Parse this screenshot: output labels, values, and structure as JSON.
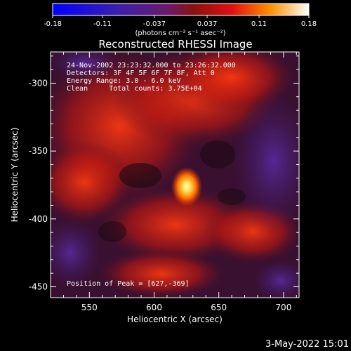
{
  "colorbar": {
    "ticks": [
      "-0.18",
      "-0.11",
      "-0.037",
      "0.037",
      "0.11",
      "0.18"
    ],
    "unit_label": "(photons cm⁻² s⁻¹ asec⁻²)",
    "range": [
      -0.18,
      0.18
    ]
  },
  "plot": {
    "title": "Reconstructed RHESSI Image",
    "info": [
      "24-Nov-2002 23:23:32.000 to 23:26:32.000",
      "Detectors: 3F 4F 5F 6F 7F 8F, Att 0",
      "Energy Range: 3.0 - 6.0 keV",
      "Clean     Total counts: 3.75E+04"
    ],
    "peak_label": "Position of Peak = [627,-369]"
  },
  "footer": {
    "timestamp": "3-May-2022 15:01"
  },
  "chart_data": {
    "type": "heatmap",
    "title": "Reconstructed RHESSI Image",
    "xlabel": "Heliocentric X (arcsec)",
    "ylabel": "Heliocentric Y (arcsec)",
    "xlim": [
      520,
      712
    ],
    "ylim": [
      -458,
      -277
    ],
    "xticks": [
      550,
      600,
      650,
      700
    ],
    "yticks": [
      -300,
      -350,
      -400,
      -450
    ],
    "peak": {
      "x": 627,
      "y": -369
    },
    "color_range": [
      -0.18,
      0.18
    ]
  }
}
